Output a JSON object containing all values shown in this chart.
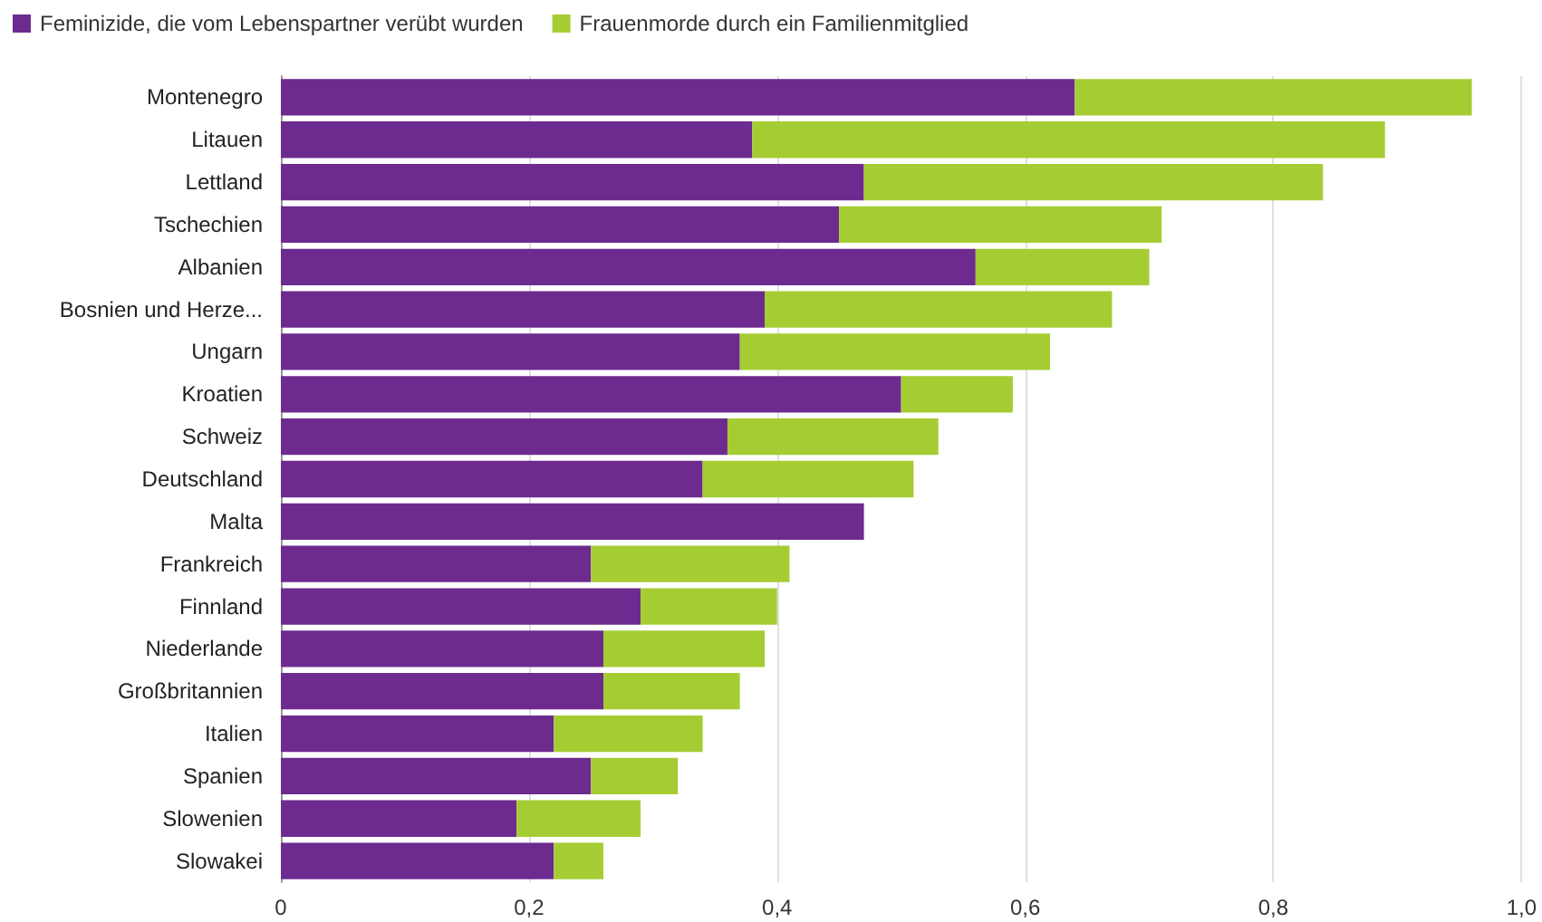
{
  "chart_data": {
    "type": "bar",
    "orientation": "horizontal",
    "stacked": true,
    "categories": [
      "Montenegro",
      "Litauen",
      "Lettland",
      "Tschechien",
      "Albanien",
      "Bosnien und Herze...",
      "Ungarn",
      "Kroatien",
      "Schweiz",
      "Deutschland",
      "Malta",
      "Frankreich",
      "Finnland",
      "Niederlande",
      "Großbritannien",
      "Italien",
      "Spanien",
      "Slowenien",
      "Slowakei"
    ],
    "series": [
      {
        "name": "Feminizide, die vom Lebenspartner verübt wurden",
        "color": "#6d2b8f",
        "values": [
          0.64,
          0.38,
          0.47,
          0.45,
          0.56,
          0.39,
          0.37,
          0.5,
          0.36,
          0.34,
          0.47,
          0.25,
          0.29,
          0.26,
          0.26,
          0.22,
          0.25,
          0.19,
          0.22
        ]
      },
      {
        "name": "Frauenmorde durch ein Familienmitglied",
        "color": "#a5cd33",
        "values": [
          0.32,
          0.51,
          0.37,
          0.26,
          0.14,
          0.28,
          0.25,
          0.09,
          0.17,
          0.17,
          0,
          0.16,
          0.11,
          0.13,
          0.11,
          0.12,
          0.07,
          0.1,
          0.04
        ]
      }
    ],
    "xlim": [
      0,
      1
    ],
    "xticks": [
      {
        "value": 0,
        "label": "0"
      },
      {
        "value": 0.2,
        "label": "0,2"
      },
      {
        "value": 0.4,
        "label": "0,4"
      },
      {
        "value": 0.6,
        "label": "0,6"
      },
      {
        "value": 0.8,
        "label": "0,8"
      },
      {
        "value": 1,
        "label": "1,0"
      }
    ],
    "grid": "x",
    "legend": "top left"
  }
}
